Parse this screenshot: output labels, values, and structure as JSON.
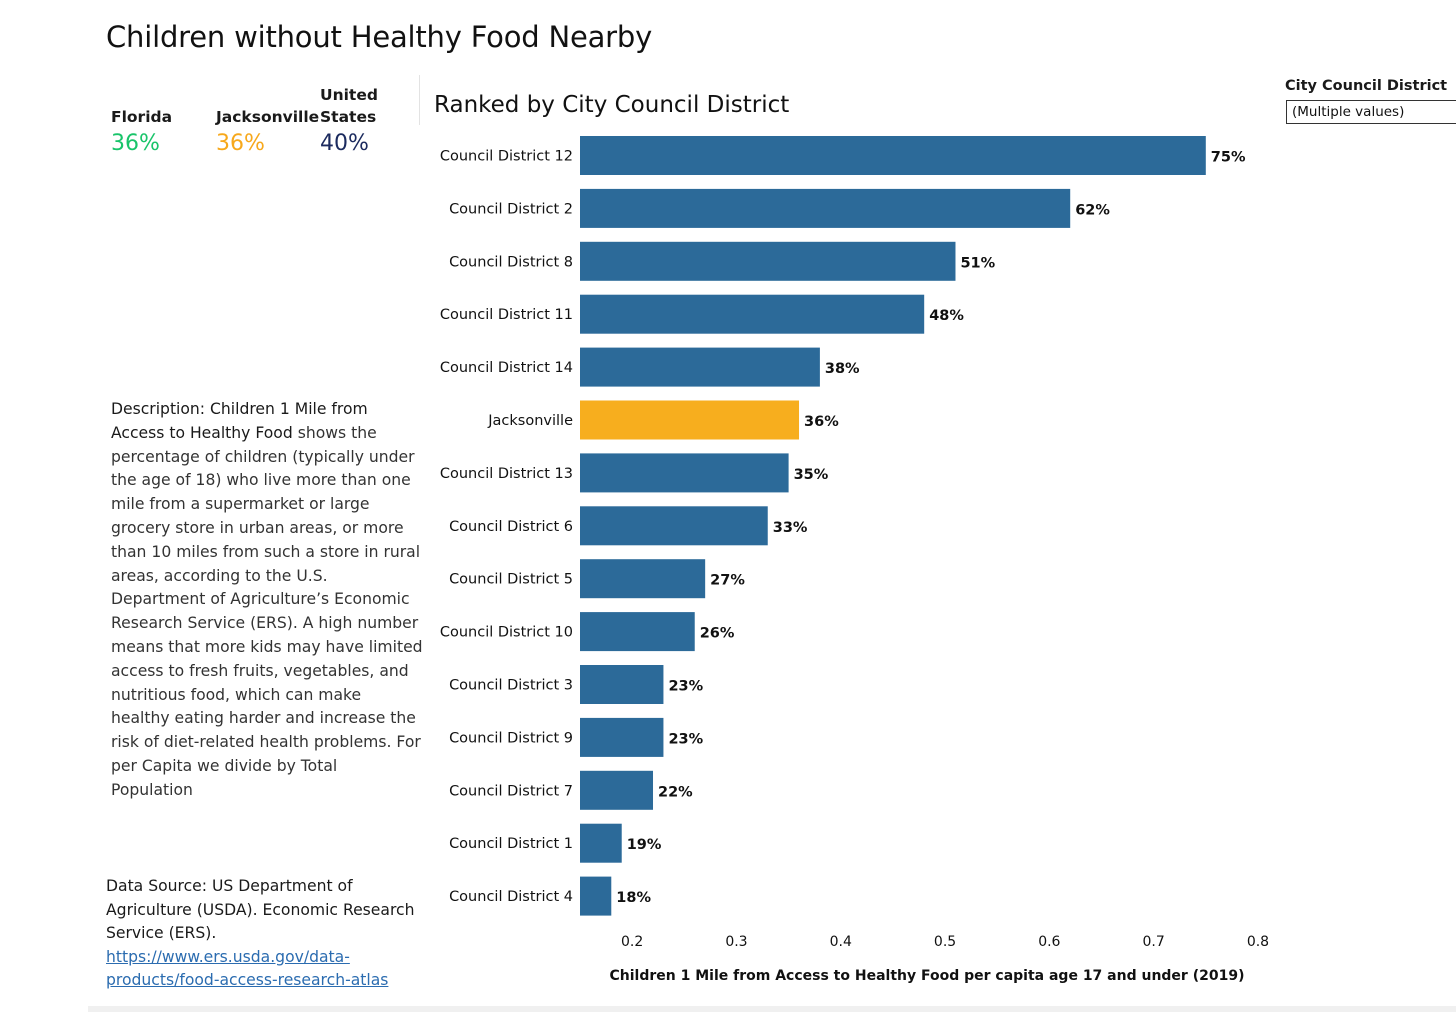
{
  "title": "Children without Healthy Food Nearby",
  "kpis": [
    {
      "label": "Florida",
      "value": "36%",
      "color": "#19c46a"
    },
    {
      "label": "Jacksonville",
      "value": "36%",
      "color": "#f7a81b"
    },
    {
      "label_line1": "United",
      "label_line2": "States",
      "value": "40%",
      "color": "#1b2a5e"
    }
  ],
  "filter": {
    "label": "City Council District",
    "value": "(Multiple values)"
  },
  "description": {
    "lead": "Description:  Children 1 Mile from Access to Healthy Food",
    "body": " shows the percentage of children (typically under the age of 18) who live more than one mile from a supermarket or large grocery store in urban areas, or more than 10 miles from such a store in rural areas, according to the U.S. Department of Agriculture’s Economic Research Service (ERS). A high number means that more kids may have limited access to fresh fruits, vegetables, and nutritious food, which can make healthy eating harder and increase the risk of diet-related health problems. For per Capita we divide by Total Population"
  },
  "source": {
    "text": "Data Source: US Department of Agriculture (USDA). Economic Research Service (ERS).",
    "link": "https://www.ers.usda.gov/data-products/food-access-research-atlas"
  },
  "chart_data": {
    "type": "bar",
    "orientation": "horizontal",
    "title": "Ranked by City Council District",
    "xlabel": "Children 1 Mile from Access to Healthy Food per capita age 17 and under (2019)",
    "ylabel": "",
    "xlim": [
      0.15,
      0.8
    ],
    "xticks": [
      0.2,
      0.3,
      0.4,
      0.5,
      0.6,
      0.7,
      0.8
    ],
    "grid": false,
    "bar_color": "#2c6a99",
    "highlight_color": "#f7ae1e",
    "categories": [
      "Council District 12",
      "Council District 2",
      "Council District 8",
      "Council District 11",
      "Council District 14",
      "Jacksonville",
      "Council District 13",
      "Council District 6",
      "Council District 5",
      "Council District 10",
      "Council District 3",
      "Council District 9",
      "Council District 7",
      "Council District 1",
      "Council District 4"
    ],
    "values": [
      0.75,
      0.62,
      0.51,
      0.48,
      0.38,
      0.36,
      0.35,
      0.33,
      0.27,
      0.26,
      0.23,
      0.23,
      0.22,
      0.19,
      0.18
    ],
    "labels": [
      "75%",
      "62%",
      "51%",
      "48%",
      "38%",
      "36%",
      "35%",
      "33%",
      "27%",
      "26%",
      "23%",
      "23%",
      "22%",
      "19%",
      "18%"
    ],
    "highlight": [
      "Jacksonville"
    ]
  }
}
